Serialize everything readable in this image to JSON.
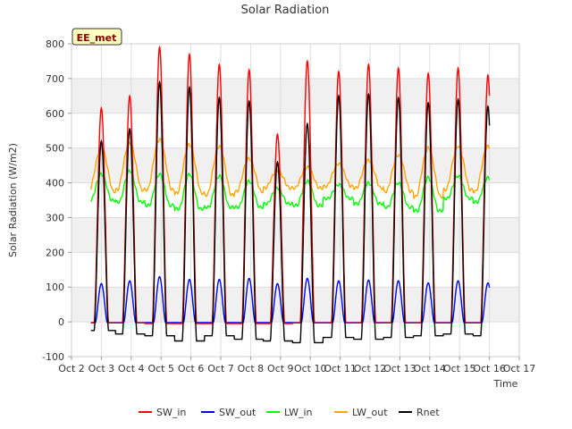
{
  "chart_data": {
    "type": "line",
    "title": "Solar Radiation",
    "xlabel": "Time",
    "ylabel": "Solar Radiation (W/m2)",
    "badge": "EE_met",
    "x_ticks": [
      "Oct 2",
      "Oct 3",
      "Oct 4",
      "Oct 5",
      "Oct 6",
      "Oct 7",
      "Oct 8",
      "Oct 9",
      "Oct 10",
      "Oct 11",
      "Oct 12",
      "Oct 13",
      "Oct 14",
      "Oct 15",
      "Oct 16",
      "Oct 17"
    ],
    "x_range": [
      2,
      17
    ],
    "ylim": [
      -100,
      800
    ],
    "y_ticks": [
      -100,
      0,
      100,
      200,
      300,
      400,
      500,
      600,
      700,
      800
    ],
    "grid": true,
    "legend_position": "bottom",
    "day_centers": [
      3.0,
      3.95,
      4.95,
      5.95,
      6.95,
      7.95,
      8.9,
      9.9,
      10.95,
      11.95,
      12.95,
      13.95,
      14.95,
      15.95
    ],
    "series": [
      {
        "name": "SW_in",
        "color": "#ff0000",
        "peaks": [
          615,
          650,
          790,
          770,
          740,
          725,
          540,
          750,
          720,
          740,
          730,
          715,
          730,
          710
        ],
        "night": [
          -3,
          -3,
          -5,
          -5,
          -5,
          -5,
          -5,
          -3,
          -3,
          -3,
          -3,
          -3,
          -3,
          -3
        ]
      },
      {
        "name": "SW_out",
        "color": "#0000ff",
        "peaks": [
          110,
          118,
          130,
          122,
          122,
          125,
          110,
          125,
          118,
          120,
          118,
          112,
          118,
          112
        ],
        "night": [
          -2,
          -2,
          -2,
          -2,
          -2,
          -2,
          -2,
          -2,
          -2,
          -2,
          -2,
          -2,
          -2,
          -2
        ]
      },
      {
        "name": "LW_in",
        "color": "#00ff00",
        "peaks": [
          425,
          435,
          425,
          425,
          420,
          405,
          385,
          405,
          395,
          400,
          400,
          415,
          420,
          415
        ],
        "night": [
          350,
          345,
          335,
          325,
          330,
          330,
          340,
          335,
          355,
          340,
          330,
          320,
          355,
          345
        ]
      },
      {
        "name": "LW_out",
        "color": "#ffa500",
        "peaks": [
          500,
          515,
          525,
          510,
          505,
          470,
          435,
          445,
          455,
          465,
          480,
          500,
          505,
          505
        ],
        "night": [
          375,
          380,
          380,
          370,
          365,
          375,
          385,
          385,
          390,
          385,
          375,
          360,
          380,
          375
        ]
      },
      {
        "name": "Rnet",
        "color": "#000000",
        "peaks": [
          520,
          555,
          690,
          675,
          645,
          635,
          460,
          570,
          650,
          655,
          645,
          630,
          640,
          620
        ],
        "night": [
          -25,
          -35,
          -40,
          -55,
          -40,
          -50,
          -55,
          -60,
          -45,
          -50,
          -45,
          -40,
          -35,
          -40
        ]
      }
    ]
  }
}
